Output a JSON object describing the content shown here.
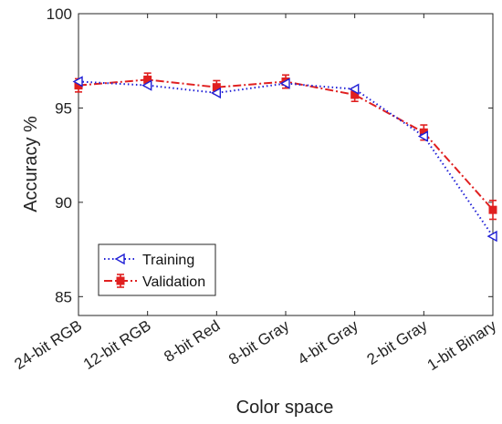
{
  "chart_data": {
    "type": "line",
    "title": "",
    "xlabel": "Color space",
    "ylabel": "Accuracy %",
    "categories": [
      "24-bit RGB",
      "12-bit RGB",
      "8-bit Red",
      "8-bit Gray",
      "4-bit Gray",
      "2-bit Gray",
      "1-bit Binary"
    ],
    "ylim": [
      84,
      100
    ],
    "yticks": [
      85,
      90,
      95,
      100
    ],
    "grid": false,
    "legend_position": "bottom-left",
    "series": [
      {
        "name": "Training",
        "values": [
          96.4,
          96.2,
          95.8,
          96.3,
          96.0,
          93.5,
          88.2
        ],
        "color": "#1f1fd6",
        "line_style": "dotted",
        "marker": "left-triangle"
      },
      {
        "name": "Validation",
        "values": [
          96.2,
          96.5,
          96.1,
          96.4,
          95.7,
          93.7,
          89.6
        ],
        "errors": [
          0.35,
          0.35,
          0.35,
          0.35,
          0.35,
          0.4,
          0.5
        ],
        "color": "#e02020",
        "line_style": "dashdot",
        "marker": "square"
      }
    ]
  }
}
